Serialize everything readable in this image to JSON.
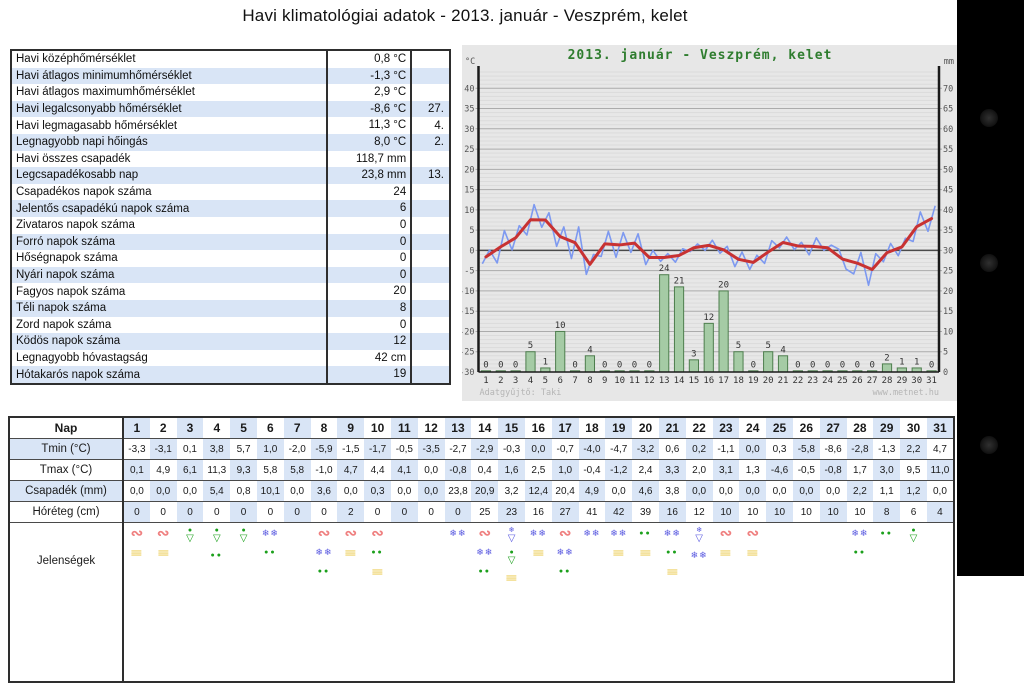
{
  "page": {
    "title": "Havi klimatológiai adatok - 2013. január - Veszprém, kelet",
    "accent_row_color": "#d9e5f6"
  },
  "stats_table": {
    "rows": [
      {
        "label": "Havi középhőmérséklet",
        "value": "0,8 °C",
        "day": ""
      },
      {
        "label": "Havi átlagos minimumhőmérséklet",
        "value": "-1,3 °C",
        "day": ""
      },
      {
        "label": "Havi átlagos maximumhőmérséklet",
        "value": "2,9 °C",
        "day": ""
      },
      {
        "label": "Havi legalcsonyabb hőmérséklet",
        "value": "-8,6 °C",
        "day": "27."
      },
      {
        "label": "Havi legmagasabb hőmérséklet",
        "value": "11,3 °C",
        "day": "4."
      },
      {
        "label": "Legnagyobb napi hőingás",
        "value": "8,0 °C",
        "day": "2."
      },
      {
        "label": "Havi összes csapadék",
        "value": "118,7 mm",
        "day": ""
      },
      {
        "label": "Legcsapadékosabb nap",
        "value": "23,8 mm",
        "day": "13."
      },
      {
        "label": "Csapadékos napok száma",
        "value": "24",
        "day": ""
      },
      {
        "label": "Jelentős csapadékú napok száma",
        "value": "6",
        "day": ""
      },
      {
        "label": "Zivataros napok száma",
        "value": "0",
        "day": ""
      },
      {
        "label": "Forró napok száma",
        "value": "0",
        "day": ""
      },
      {
        "label": "Hőségnapok száma",
        "value": "0",
        "day": ""
      },
      {
        "label": "Nyári napok száma",
        "value": "0",
        "day": ""
      },
      {
        "label": "Fagyos napok száma",
        "value": "20",
        "day": ""
      },
      {
        "label": "Téli napok száma",
        "value": "8",
        "day": ""
      },
      {
        "label": "Zord napok száma",
        "value": "0",
        "day": ""
      },
      {
        "label": "Ködös napok száma",
        "value": "12",
        "day": ""
      },
      {
        "label": "Legnagyobb hóvastagság",
        "value": "42 cm",
        "day": ""
      },
      {
        "label": "Hótakarós napok száma",
        "value": "19",
        "day": ""
      }
    ]
  },
  "daily_table": {
    "day_header_label": "Nap",
    "days": [
      1,
      2,
      3,
      4,
      5,
      6,
      7,
      8,
      9,
      10,
      11,
      12,
      13,
      14,
      15,
      16,
      17,
      18,
      19,
      20,
      21,
      22,
      23,
      24,
      25,
      26,
      27,
      28,
      29,
      30,
      31
    ],
    "rows": [
      {
        "key": "tmin",
        "label": "Tmin (°C)",
        "values": [
          "-3,3",
          "-3,1",
          "0,1",
          "3,8",
          "5,7",
          "1,0",
          "-2,0",
          "-5,9",
          "-1,5",
          "-1,7",
          "-0,5",
          "-3,5",
          "-2,7",
          "-2,9",
          "-0,3",
          "0,0",
          "-0,7",
          "-4,0",
          "-4,7",
          "-3,2",
          "0,6",
          "0,2",
          "-1,1",
          "0,0",
          "0,3",
          "-5,8",
          "-8,6",
          "-2,8",
          "-1,3",
          "2,2",
          "4,7"
        ]
      },
      {
        "key": "tmax",
        "label": "Tmax (°C)",
        "values": [
          "0,1",
          "4,9",
          "6,1",
          "11,3",
          "9,3",
          "5,8",
          "5,8",
          "-1,0",
          "4,7",
          "4,4",
          "4,1",
          "0,0",
          "-0,8",
          "0,4",
          "1,6",
          "2,5",
          "1,0",
          "-0,4",
          "-1,2",
          "2,4",
          "3,3",
          "2,0",
          "3,1",
          "1,3",
          "-4,6",
          "-0,5",
          "-0,8",
          "1,7",
          "3,0",
          "9,5",
          "11,0"
        ]
      },
      {
        "key": "csapadek",
        "label": "Csapadék (mm)",
        "values": [
          "0,0",
          "0,0",
          "0,0",
          "5,4",
          "0,8",
          "10,1",
          "0,0",
          "3,6",
          "0,0",
          "0,3",
          "0,0",
          "0,0",
          "23,8",
          "20,9",
          "3,2",
          "12,4",
          "20,4",
          "4,9",
          "0,0",
          "4,6",
          "3,8",
          "0,0",
          "0,0",
          "0,0",
          "0,0",
          "0,0",
          "0,0",
          "2,2",
          "1,1",
          "1,2",
          "0,0"
        ]
      },
      {
        "key": "horeteg",
        "label": "Hóréteg (cm)",
        "values": [
          "0",
          "0",
          "0",
          "0",
          "0",
          "0",
          "0",
          "0",
          "2",
          "0",
          "0",
          "0",
          "0",
          "25",
          "23",
          "16",
          "27",
          "41",
          "42",
          "39",
          "16",
          "12",
          "10",
          "10",
          "10",
          "10",
          "10",
          "10",
          "8",
          "6",
          "4"
        ]
      }
    ],
    "phenomena": {
      "label": "Jelenségek",
      "by_day": [
        [
          "fog",
          "mist"
        ],
        [
          "fog",
          "mist"
        ],
        [
          "shower"
        ],
        [
          "shower",
          "rain"
        ],
        [
          "shower"
        ],
        [
          "snow",
          "rain"
        ],
        [],
        [
          "fog",
          "snow",
          "rain"
        ],
        [
          "fog",
          "mist"
        ],
        [
          "fog",
          "rain",
          "mist"
        ],
        [],
        [],
        [
          "snow"
        ],
        [
          "fog",
          "snow",
          "rain"
        ],
        [
          "snowshower",
          "shower",
          "mist"
        ],
        [
          "snow",
          "mist"
        ],
        [
          "fog",
          "snow",
          "rain"
        ],
        [
          "snow"
        ],
        [
          "snow",
          "mist"
        ],
        [
          "rain",
          "mist"
        ],
        [
          "snow",
          "rain",
          "mist"
        ],
        [
          "snowshower",
          "snow"
        ],
        [
          "fog",
          "mist"
        ],
        [
          "fog",
          "mist"
        ],
        [],
        [],
        [],
        [
          "snow",
          "rain"
        ],
        [
          "rain"
        ],
        [
          "shower"
        ],
        []
      ]
    }
  },
  "symbols": {
    "fog": {
      "glyph": "∾",
      "color": "#ef8080",
      "meaning": "köd"
    },
    "mist": {
      "glyph": "≡",
      "color": "#e8c43c",
      "meaning": "párásság"
    },
    "rain": {
      "glyph": "●●",
      "color": "#1ca01c",
      "meaning": "eső"
    },
    "snow": {
      "glyph": "❄❄",
      "color": "#5858e0",
      "meaning": "havazás"
    },
    "shower": {
      "top": "●",
      "bottom": "▽",
      "color": "#1ca01c",
      "meaning": "zápor"
    },
    "snowshower": {
      "top": "❄",
      "bottom": "▽",
      "color": "#5858e0",
      "meaning": "hózápor"
    }
  },
  "chart_data": {
    "type": "composite",
    "title": "2013. január - Veszprém, kelet",
    "title_color": "#2f7d2f",
    "credits_left": "Adatgyűjtő: Taki",
    "credits_right": "www.metnet.hu",
    "background": "#e7e7e7",
    "x": [
      1,
      2,
      3,
      4,
      5,
      6,
      7,
      8,
      9,
      10,
      11,
      12,
      13,
      14,
      15,
      16,
      17,
      18,
      19,
      20,
      21,
      22,
      23,
      24,
      25,
      26,
      27,
      28,
      29,
      30,
      31
    ],
    "left_axis": {
      "label": "°C",
      "tick_min": -30,
      "tick_max": 40,
      "tick_step": 5,
      "plot_min": -30,
      "plot_max": 45
    },
    "right_axis": {
      "label": "mm",
      "tick_min": 0,
      "tick_max": 70,
      "tick_step": 5,
      "plot_min": 0,
      "plot_max": 75
    },
    "series": [
      {
        "name": "csapadék (mm, kerekítve)",
        "type": "bar",
        "axis": "right",
        "fill": "#a5cba5",
        "stroke": "#4e7e4e",
        "values": [
          0,
          0,
          0,
          5,
          1,
          10,
          0,
          4,
          0,
          0,
          0,
          0,
          24,
          21,
          3,
          12,
          20,
          5,
          0,
          5,
          4,
          0,
          0,
          0,
          0,
          0,
          0,
          2,
          1,
          1,
          0
        ]
      },
      {
        "name": "Tmin (°C)",
        "type": "line-zigzag-min",
        "axis": "left",
        "color": "#7d99f0",
        "values": [
          -3.3,
          -3.1,
          0.1,
          3.8,
          5.7,
          1.0,
          -2.0,
          -5.9,
          -1.5,
          -1.7,
          -0.5,
          -3.5,
          -2.7,
          -2.9,
          -0.3,
          0.0,
          -0.7,
          -4.0,
          -4.7,
          -3.2,
          0.6,
          0.2,
          -1.1,
          0.0,
          0.3,
          -5.8,
          -8.6,
          -2.8,
          -1.3,
          2.2,
          4.7
        ]
      },
      {
        "name": "Tmax (°C)",
        "type": "line-zigzag-max",
        "axis": "left",
        "color": "#7d99f0",
        "values": [
          0.1,
          4.9,
          6.1,
          11.3,
          9.3,
          5.8,
          5.8,
          -1.0,
          4.7,
          4.4,
          4.1,
          0.0,
          -0.8,
          0.4,
          1.6,
          2.5,
          1.0,
          -0.4,
          -1.2,
          2.4,
          3.3,
          2.0,
          3.1,
          1.3,
          -4.6,
          -0.5,
          -0.8,
          1.7,
          3.0,
          9.5,
          11.0
        ]
      },
      {
        "name": "napi középhőmérséklet (°C)",
        "type": "line-mean",
        "axis": "left",
        "color": "#c83232",
        "derived": "mean(Tmin,Tmax)"
      }
    ]
  },
  "bezel": {
    "color": "#000000",
    "dot_tops": [
      109,
      254,
      436
    ]
  }
}
